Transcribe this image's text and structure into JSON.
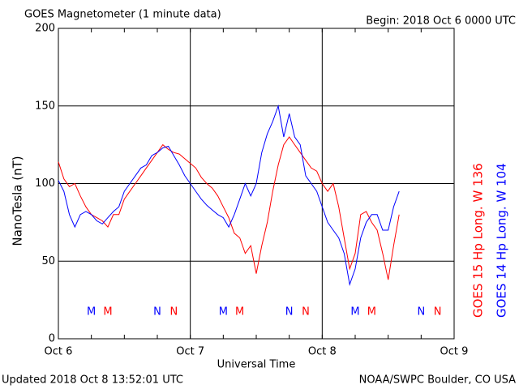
{
  "chart_data": {
    "type": "line",
    "title": "GOES Magnetometer (1 minute data)",
    "subtitle": "Begin:  2018 Oct 6 0000 UTC",
    "y_label": "NanoTesla (nT)",
    "x_label": "Universal Time",
    "footer_left": "Updated 2018 Oct  8 13:52:01 UTC",
    "footer_right": "NOAA/SWPC Boulder, CO USA",
    "xlim": [
      0,
      72
    ],
    "xticks": [
      {
        "value": 0,
        "label": "Oct 6"
      },
      {
        "value": 24,
        "label": "Oct 7"
      },
      {
        "value": 48,
        "label": "Oct 8"
      },
      {
        "value": 72,
        "label": "Oct 9"
      }
    ],
    "ylim": [
      0,
      200
    ],
    "yticks": [
      0,
      50,
      100,
      150,
      200
    ],
    "grid": true,
    "x": [
      0,
      1,
      2,
      3,
      4,
      5,
      6,
      7,
      8,
      9,
      10,
      11,
      12,
      13,
      14,
      15,
      16,
      17,
      18,
      19,
      20,
      21,
      22,
      23,
      24,
      25,
      26,
      27,
      28,
      29,
      30,
      31,
      32,
      33,
      34,
      35,
      36,
      37,
      38,
      39,
      40,
      41,
      42,
      43,
      44,
      45,
      46,
      47,
      48,
      49,
      50,
      51,
      52,
      53,
      54,
      55,
      56,
      57,
      58,
      59,
      60,
      61,
      62
    ],
    "series": [
      {
        "name": "GOES 15 Hp  Long. W 136",
        "color": "#ff0000",
        "values": [
          114,
          103,
          98,
          100,
          92,
          85,
          80,
          78,
          76,
          72,
          80,
          80,
          90,
          95,
          100,
          105,
          110,
          115,
          120,
          125,
          122,
          120,
          119,
          116,
          113,
          110,
          104,
          100,
          97,
          92,
          85,
          78,
          68,
          65,
          55,
          60,
          42,
          60,
          75,
          95,
          112,
          125,
          130,
          125,
          120,
          115,
          110,
          108,
          100,
          95,
          100,
          85,
          65,
          45,
          55,
          80,
          82,
          75,
          70,
          55,
          38,
          60,
          80
        ]
      },
      {
        "name": "GOES 14 Hp  Long. W 104",
        "color": "#0000ff",
        "values": [
          102,
          95,
          80,
          72,
          80,
          82,
          80,
          76,
          74,
          78,
          82,
          85,
          95,
          100,
          105,
          110,
          112,
          118,
          120,
          123,
          124,
          118,
          112,
          105,
          100,
          95,
          90,
          86,
          83,
          80,
          78,
          72,
          80,
          90,
          100,
          92,
          100,
          120,
          132,
          140,
          150,
          130,
          145,
          130,
          125,
          105,
          100,
          95,
          85,
          75,
          70,
          65,
          55,
          35,
          45,
          65,
          75,
          80,
          80,
          70,
          70,
          85,
          95
        ]
      }
    ],
    "markers": [
      {
        "text": "M",
        "x": 6,
        "color": "#0000ff"
      },
      {
        "text": "M",
        "x": 9,
        "color": "#ff0000"
      },
      {
        "text": "N",
        "x": 18,
        "color": "#0000ff"
      },
      {
        "text": "N",
        "x": 21,
        "color": "#ff0000"
      },
      {
        "text": "M",
        "x": 30,
        "color": "#0000ff"
      },
      {
        "text": "M",
        "x": 33,
        "color": "#ff0000"
      },
      {
        "text": "N",
        "x": 42,
        "color": "#0000ff"
      },
      {
        "text": "N",
        "x": 45,
        "color": "#ff0000"
      },
      {
        "text": "M",
        "x": 54,
        "color": "#0000ff"
      },
      {
        "text": "M",
        "x": 57,
        "color": "#ff0000"
      },
      {
        "text": "N",
        "x": 66,
        "color": "#0000ff"
      },
      {
        "text": "N",
        "x": 69,
        "color": "#ff0000"
      }
    ]
  }
}
